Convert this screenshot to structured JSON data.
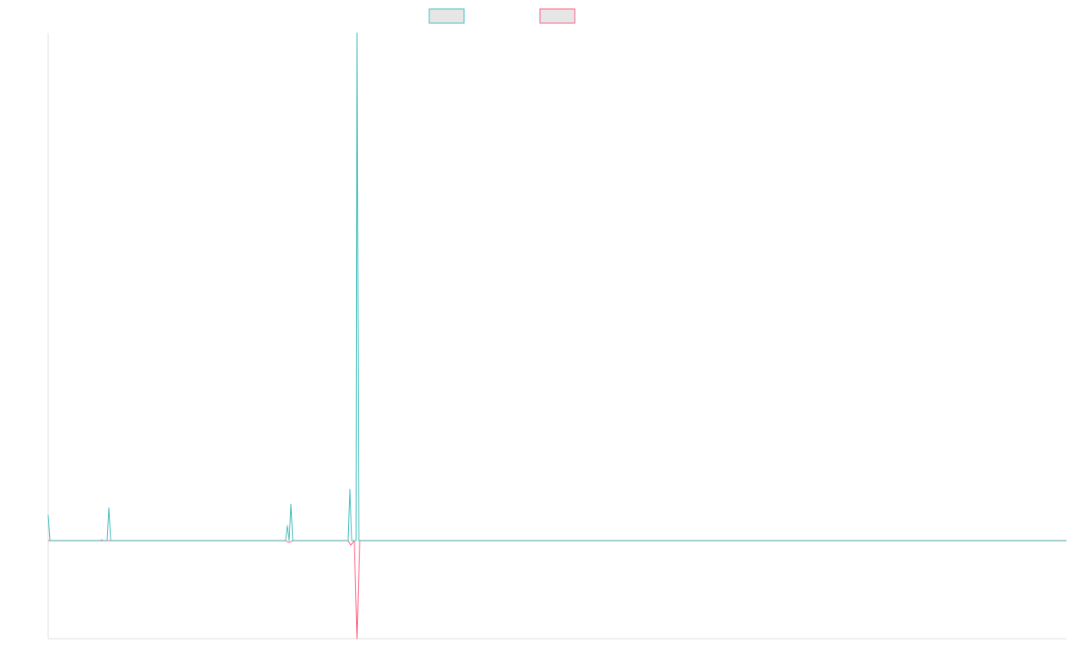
{
  "chart_data": {
    "type": "line",
    "title": "",
    "xlabel": "",
    "ylabel": "",
    "grid": false,
    "legend_position": "top-center",
    "colors": {
      "series_a": "#4bc0c0",
      "series_b": "#ff6384",
      "legend_fill": "#e6e6e6",
      "axis": "#e0e0e0"
    },
    "ylim": [
      -110,
      570
    ],
    "xlim": [
      0,
      1141
    ],
    "series": [
      {
        "points": [
          [
            0,
            29
          ],
          [
            2,
            0
          ],
          [
            66,
            0
          ],
          [
            68,
            37
          ],
          [
            70,
            0
          ],
          [
            266,
            0
          ],
          [
            268,
            17
          ],
          [
            270,
            0
          ],
          [
            272,
            41
          ],
          [
            274,
            0
          ],
          [
            336,
            0
          ],
          [
            338,
            58
          ],
          [
            340,
            0
          ],
          [
            342,
            0
          ],
          [
            344,
            0
          ],
          [
            345,
            0
          ],
          [
            346,
            570
          ],
          [
            348,
            0
          ],
          [
            1141,
            0
          ]
        ]
      },
      {
        "points": [
          [
            0,
            0
          ],
          [
            58,
            0
          ],
          [
            60,
            1
          ],
          [
            62,
            0
          ],
          [
            266,
            0
          ],
          [
            270,
            -2
          ],
          [
            274,
            0
          ],
          [
            336,
            0
          ],
          [
            339,
            -5
          ],
          [
            343,
            0
          ],
          [
            346,
            -110
          ],
          [
            349,
            0
          ],
          [
            1141,
            0
          ]
        ]
      }
    ]
  }
}
